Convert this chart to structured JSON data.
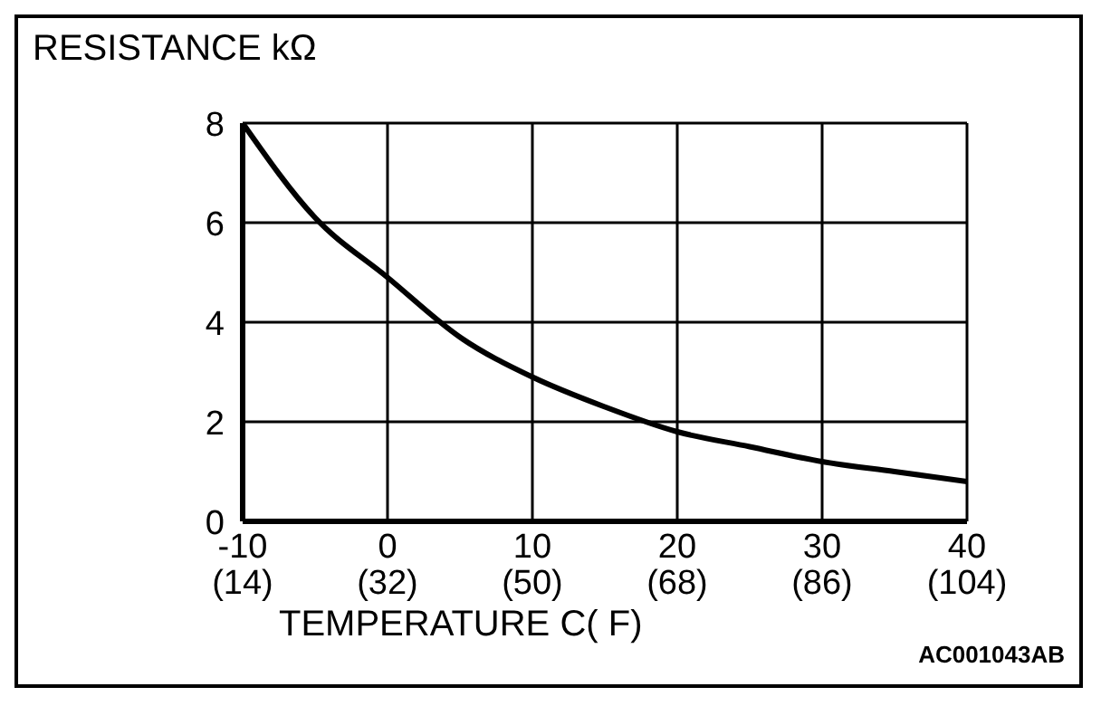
{
  "chart_data": {
    "type": "line",
    "ylabel": "RESISTANCE kΩ",
    "xlabel": "TEMPERATURE  C( F)",
    "annotations": [
      "AC001043AB"
    ],
    "x": [
      -10,
      -5,
      0,
      5,
      10,
      15,
      20,
      25,
      30,
      35,
      40
    ],
    "series": [
      {
        "color": "#000000",
        "values": [
          8,
          6.1,
          4.9,
          3.7,
          2.9,
          2.3,
          1.8,
          1.5,
          1.2,
          1.0,
          0.8
        ]
      }
    ],
    "xlim": [
      -10,
      40
    ],
    "xticks": [
      -10,
      0,
      10,
      20,
      30,
      40
    ],
    "x2lim": [
      14,
      104
    ],
    "x2ticks": [
      {
        "value": 14,
        "label": "(14)"
      },
      {
        "value": 32,
        "label": "(32)"
      },
      {
        "value": 50,
        "label": "(50)"
      },
      {
        "value": 68,
        "label": "(68)"
      },
      {
        "value": 86,
        "label": "(86)"
      },
      {
        "value": 104,
        "label": "(104)"
      }
    ],
    "ylim": [
      0,
      8
    ],
    "yticks": [
      0,
      2,
      4,
      6,
      8
    ],
    "grid": true,
    "marker": "none",
    "line_style": "solid"
  }
}
